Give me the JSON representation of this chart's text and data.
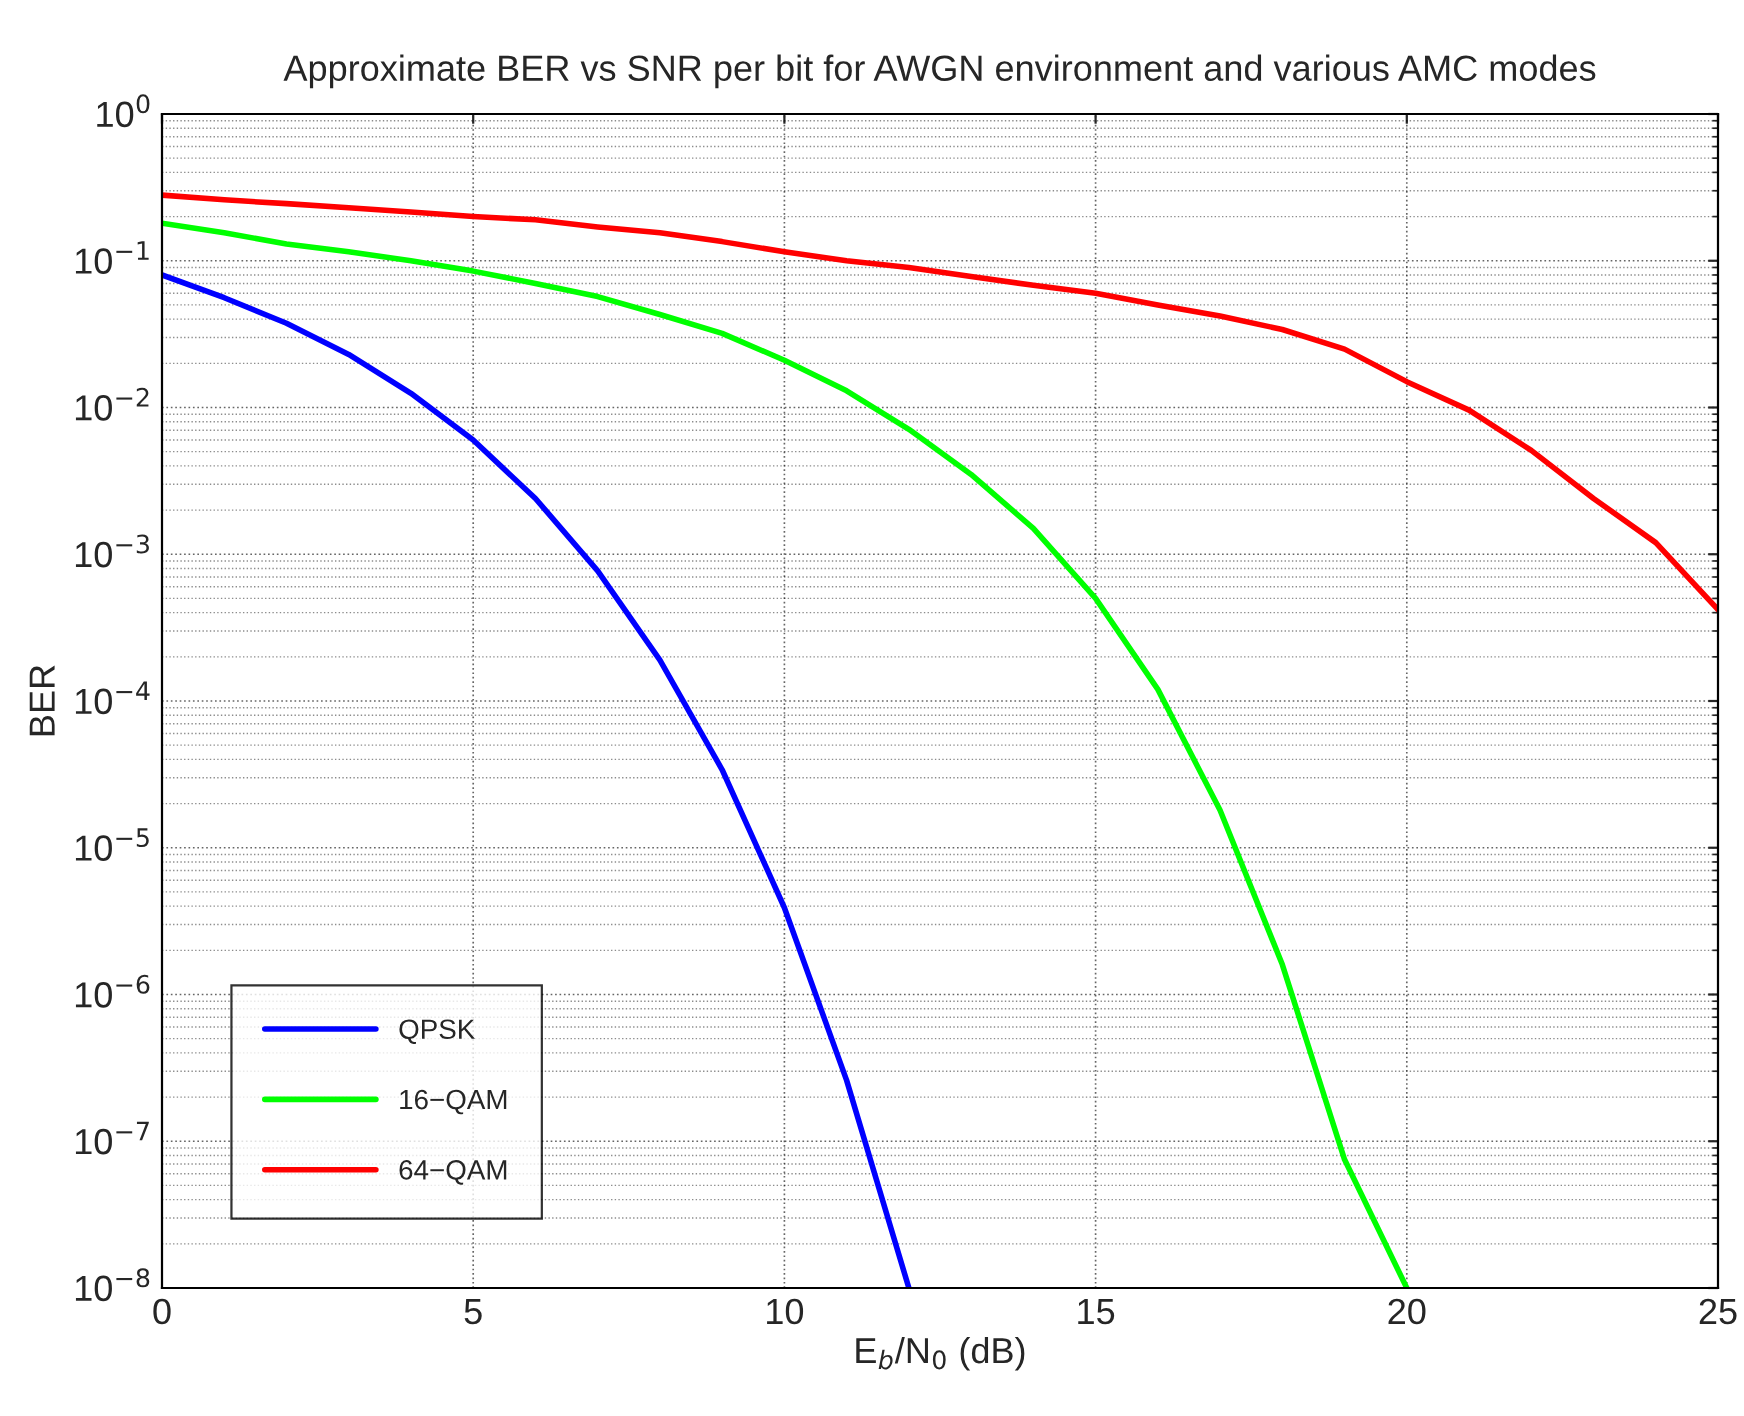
{
  "chart_data": {
    "type": "line",
    "title": "Approximate BER vs SNR per bit for AWGN environment and various AMC modes",
    "xlabel": "E$_{b}$/N$_{0}$ (dB)",
    "ylabel": "BER",
    "x": [
      0,
      1,
      2,
      3,
      4,
      5,
      6,
      7,
      8,
      9,
      10,
      11,
      12,
      13,
      14,
      15,
      16,
      17,
      18,
      19,
      20,
      21,
      22,
      23,
      24,
      25
    ],
    "series": [
      {
        "name": "QPSK",
        "color": "#0000ff",
        "x": [
          0,
          1,
          2,
          3,
          4,
          5,
          6,
          7,
          8,
          9,
          10,
          11,
          12
        ],
        "values": [
          0.08,
          0.056,
          0.0375,
          0.023,
          0.0125,
          0.006,
          0.0024,
          0.00077,
          0.00019,
          3.4e-05,
          3.9e-06,
          2.6e-07,
          1e-08
        ]
      },
      {
        "name": "16−QAM",
        "color": "#00ff00",
        "x": [
          0,
          1,
          2,
          3,
          4,
          5,
          6,
          7,
          8,
          9,
          10,
          11,
          12,
          13,
          14,
          15,
          16,
          17,
          18,
          19,
          20
        ],
        "values": [
          0.18,
          0.155,
          0.13,
          0.115,
          0.1,
          0.085,
          0.07,
          0.057,
          0.043,
          0.032,
          0.021,
          0.013,
          0.0071,
          0.0035,
          0.0015,
          0.0005,
          0.00012,
          1.8e-05,
          1.6e-06,
          7.5e-08,
          1e-08
        ]
      },
      {
        "name": "64−QAM",
        "color": "#ff0000",
        "values": [
          0.28,
          0.26,
          0.245,
          0.23,
          0.215,
          0.2,
          0.19,
          0.17,
          0.155,
          0.135,
          0.115,
          0.1,
          0.09,
          0.078,
          0.068,
          0.06,
          0.05,
          0.042,
          0.034,
          0.025,
          0.015,
          0.0096,
          0.0051,
          0.0024,
          0.0012,
          0.00042
        ]
      }
    ],
    "log": "y",
    "xlim": [
      0,
      25
    ],
    "ylim": [
      1e-08,
      1
    ],
    "xticks": [
      0,
      5,
      10,
      15,
      20,
      25
    ],
    "yticks": [
      {
        "value": 1e-08,
        "label": "10$^{−8}$"
      },
      {
        "value": 1e-07,
        "label": "10$^{−7}$"
      },
      {
        "value": 1e-06,
        "label": "10$^{−6}$"
      },
      {
        "value": 1e-05,
        "label": "10$^{−5}$"
      },
      {
        "value": 0.0001,
        "label": "10$^{−4}$"
      },
      {
        "value": 0.001,
        "label": "10$^{−3}$"
      },
      {
        "value": 0.01,
        "label": "10$^{−2}$"
      },
      {
        "value": 0.1,
        "label": "10$^{−1}$"
      },
      {
        "value": 1,
        "label": "10$^{0}$"
      }
    ],
    "grid": true,
    "legend": "bottom left",
    "marker": "none",
    "line_style": "solid"
  }
}
